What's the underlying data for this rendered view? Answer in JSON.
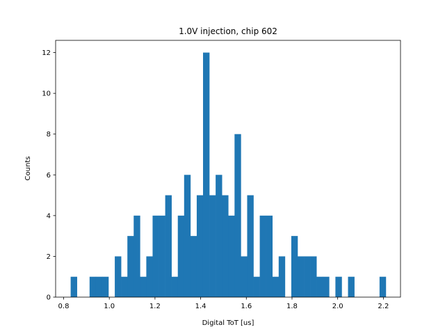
{
  "chart_data": {
    "type": "bar",
    "title": "1.0V injection, chip 602",
    "xlabel": "Digital ToT [us]",
    "ylabel": "Counts",
    "xlim": [
      0.765,
      2.275
    ],
    "ylim": [
      0,
      12.6
    ],
    "xticks": [
      0.8,
      1.0,
      1.2,
      1.4,
      1.6,
      1.8,
      2.0,
      2.2
    ],
    "xtick_labels": [
      "0.8",
      "1.0",
      "1.2",
      "1.4",
      "1.6",
      "1.8",
      "2.0",
      "2.2"
    ],
    "yticks": [
      0,
      2,
      4,
      6,
      8,
      10,
      12
    ],
    "ytick_labels": [
      "0",
      "2",
      "4",
      "6",
      "8",
      "10",
      "12"
    ],
    "color": "#1f77b4",
    "bin_start": 0.8308,
    "bin_width": 0.0276,
    "counts": [
      1,
      0,
      0,
      1,
      1,
      1,
      0,
      2,
      1,
      3,
      4,
      1,
      2,
      4,
      4,
      5,
      1,
      4,
      6,
      3,
      5,
      12,
      5,
      6,
      5,
      4,
      8,
      2,
      5,
      1,
      4,
      4,
      1,
      2,
      0,
      3,
      2,
      2,
      2,
      1,
      1,
      0,
      1,
      0,
      1,
      0,
      0,
      0,
      0,
      1
    ],
    "grid": false,
    "legend": "none"
  }
}
